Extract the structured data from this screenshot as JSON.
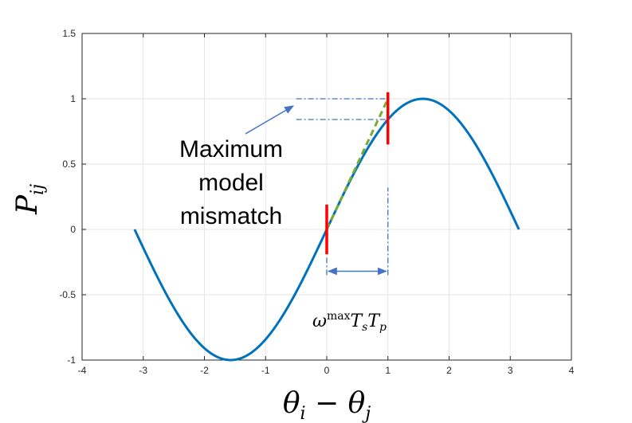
{
  "chart_data": {
    "type": "line",
    "xlim": [
      -4,
      4
    ],
    "ylim": [
      -1,
      1.5
    ],
    "xticks": [
      "-4",
      "-3",
      "-2",
      "-1",
      "0",
      "1",
      "2",
      "3",
      "4"
    ],
    "yticks": [
      "-1",
      "-0.5",
      "0",
      "0.5",
      "1",
      "1.5"
    ],
    "grid": true,
    "xlabel": {
      "main": "θ",
      "sub": "i",
      "op": " − ",
      "main2": "θ",
      "sub2": "j"
    },
    "ylabel": {
      "main": "P",
      "sub": "ij"
    },
    "series": [
      {
        "function": "sin(x)",
        "x_range": [
          -3.14159,
          3.14159
        ],
        "color": "#0072BD"
      }
    ],
    "linear_approx": {
      "x": [
        0,
        1
      ],
      "y": [
        0,
        1
      ],
      "color": "#77AC30",
      "style": "dashed"
    },
    "markers": [
      {
        "x": 0,
        "y_range": [
          -0.19,
          0.19
        ],
        "color": "#FF0000"
      },
      {
        "x": 1,
        "y_range": [
          0.65,
          1.05
        ],
        "color": "#FF0000"
      }
    ],
    "guides": {
      "color": "#4472C4",
      "horizontal": [
        {
          "y": 1.0,
          "x_range": [
            -0.5,
            1
          ]
        },
        {
          "y": 0.8415,
          "x_range": [
            -0.5,
            1
          ]
        }
      ],
      "vertical": [
        {
          "x": 1,
          "y_range": [
            -0.35,
            0.32
          ]
        },
        {
          "x": 0,
          "y_range": [
            -0.35,
            -0.2
          ]
        }
      ],
      "span_arrow": {
        "y": -0.32,
        "x_range": [
          0,
          1
        ]
      }
    },
    "annotations": {
      "mismatch_lines": [
        "Maximum",
        "model",
        "mismatch"
      ],
      "span_label": {
        "base": "ω",
        "sup": "max",
        "t1": "T",
        "s1": "s",
        "t2": "T",
        "s2": "p"
      }
    }
  }
}
